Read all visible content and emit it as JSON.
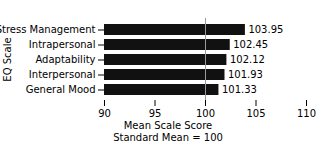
{
  "chart_data": {
    "type": "bar",
    "orientation": "horizontal",
    "categories": [
      "General Mood",
      "Interpersonal",
      "Adaptability",
      "Intrapersonal",
      "Stress Management"
    ],
    "values": [
      101.33,
      101.93,
      102.12,
      102.45,
      103.95
    ],
    "color": "#111111",
    "data_labels": true,
    "xlim": [
      90,
      110
    ],
    "xticks": [
      90,
      95,
      100,
      105,
      110
    ],
    "ylabel": "EQ Scale",
    "xlabel": "Mean Scale Score\nStandard Mean = 100",
    "reference_line": {
      "value": 100,
      "color": "#999999"
    },
    "grid": false
  }
}
